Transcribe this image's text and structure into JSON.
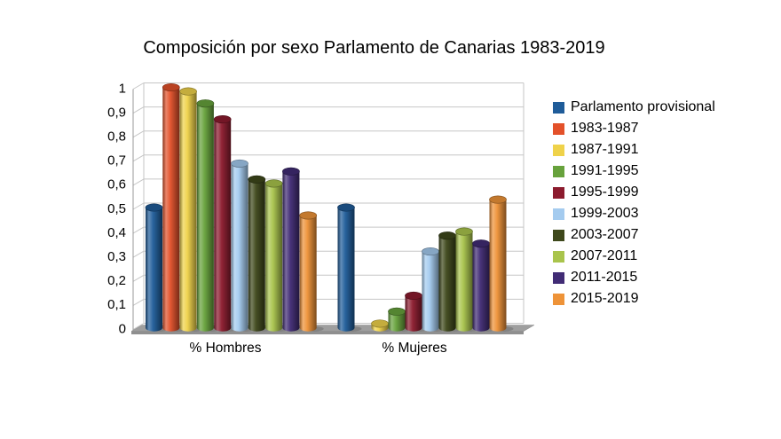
{
  "page": {
    "background": "#ffffff"
  },
  "chart_data": {
    "type": "bar",
    "style": "3d-cylinder",
    "title": "Composición por sexo Parlamento de Canarias 1983-2019",
    "categories": [
      "% Hombres",
      "% Mujeres"
    ],
    "series": [
      {
        "name": "Parlamento provisional",
        "color": "#1F5C99",
        "values": [
          0.5,
          0.5
        ]
      },
      {
        "name": "1983-1987",
        "color": "#E3512A",
        "values": [
          1.0,
          0.0
        ]
      },
      {
        "name": "1987-1991",
        "color": "#EFD24A",
        "values": [
          0.983,
          0.017
        ]
      },
      {
        "name": "1991-1995",
        "color": "#67A23C",
        "values": [
          0.933,
          0.067
        ]
      },
      {
        "name": "1995-1999",
        "color": "#8C1B2E",
        "values": [
          0.867,
          0.133
        ]
      },
      {
        "name": "1999-2003",
        "color": "#A4CBEF",
        "values": [
          0.683,
          0.317
        ]
      },
      {
        "name": "2003-2007",
        "color": "#3E481B",
        "values": [
          0.617,
          0.383
        ]
      },
      {
        "name": "2007-2011",
        "color": "#A9C44C",
        "values": [
          0.6,
          0.4
        ]
      },
      {
        "name": "2011-2015",
        "color": "#412C75",
        "values": [
          0.65,
          0.35
        ]
      },
      {
        "name": "2015-2019",
        "color": "#EE9338",
        "values": [
          0.467,
          0.533
        ]
      }
    ],
    "ylim": [
      0,
      1
    ],
    "ytick_step": 0.1,
    "ytick_labels": [
      "0",
      "0,1",
      "0,2",
      "0,3",
      "0,4",
      "0,5",
      "0,6",
      "0,7",
      "0,8",
      "0,9",
      "1"
    ],
    "grid": true,
    "legend_position": "right",
    "colors": {
      "text": "#000000",
      "gridline": "#C6C6C6",
      "axis_line": "#9A9A9A",
      "wall_fill": "#FFFFFF",
      "floor_top": "#9E9E9E",
      "floor_front": "#8F8F8F"
    }
  }
}
